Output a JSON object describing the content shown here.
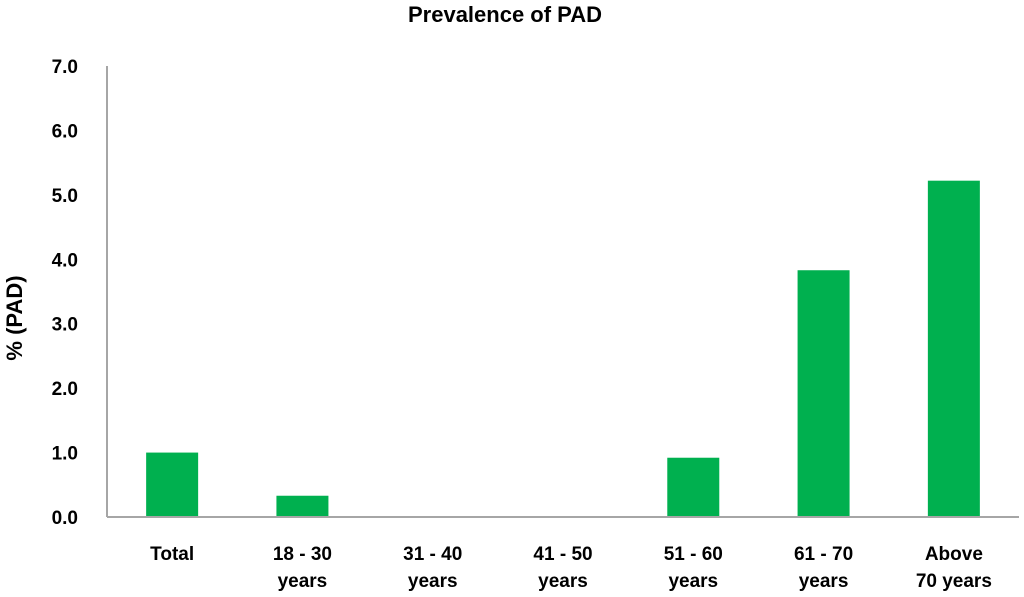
{
  "chart_data": {
    "type": "bar",
    "title": "Prevalence of PAD",
    "xlabel": "",
    "ylabel": "% (PAD)",
    "ylim": [
      0,
      7
    ],
    "y_ticks": [
      "0.0",
      "1.0",
      "2.0",
      "3.0",
      "4.0",
      "5.0",
      "6.0",
      "7.0"
    ],
    "categories": [
      [
        "Total"
      ],
      [
        "18 - 30",
        "years"
      ],
      [
        "31 - 40",
        "years"
      ],
      [
        "41 - 50",
        "years"
      ],
      [
        "51 - 60",
        "years"
      ],
      [
        "61 - 70",
        "years"
      ],
      [
        "Above",
        "70 years"
      ]
    ],
    "values": [
      1.0,
      0.33,
      0.0,
      0.0,
      0.92,
      3.83,
      5.22
    ],
    "bar_color": "#00b04f",
    "axis_color": "#a6a6a6",
    "grid": false,
    "legend": "none"
  }
}
